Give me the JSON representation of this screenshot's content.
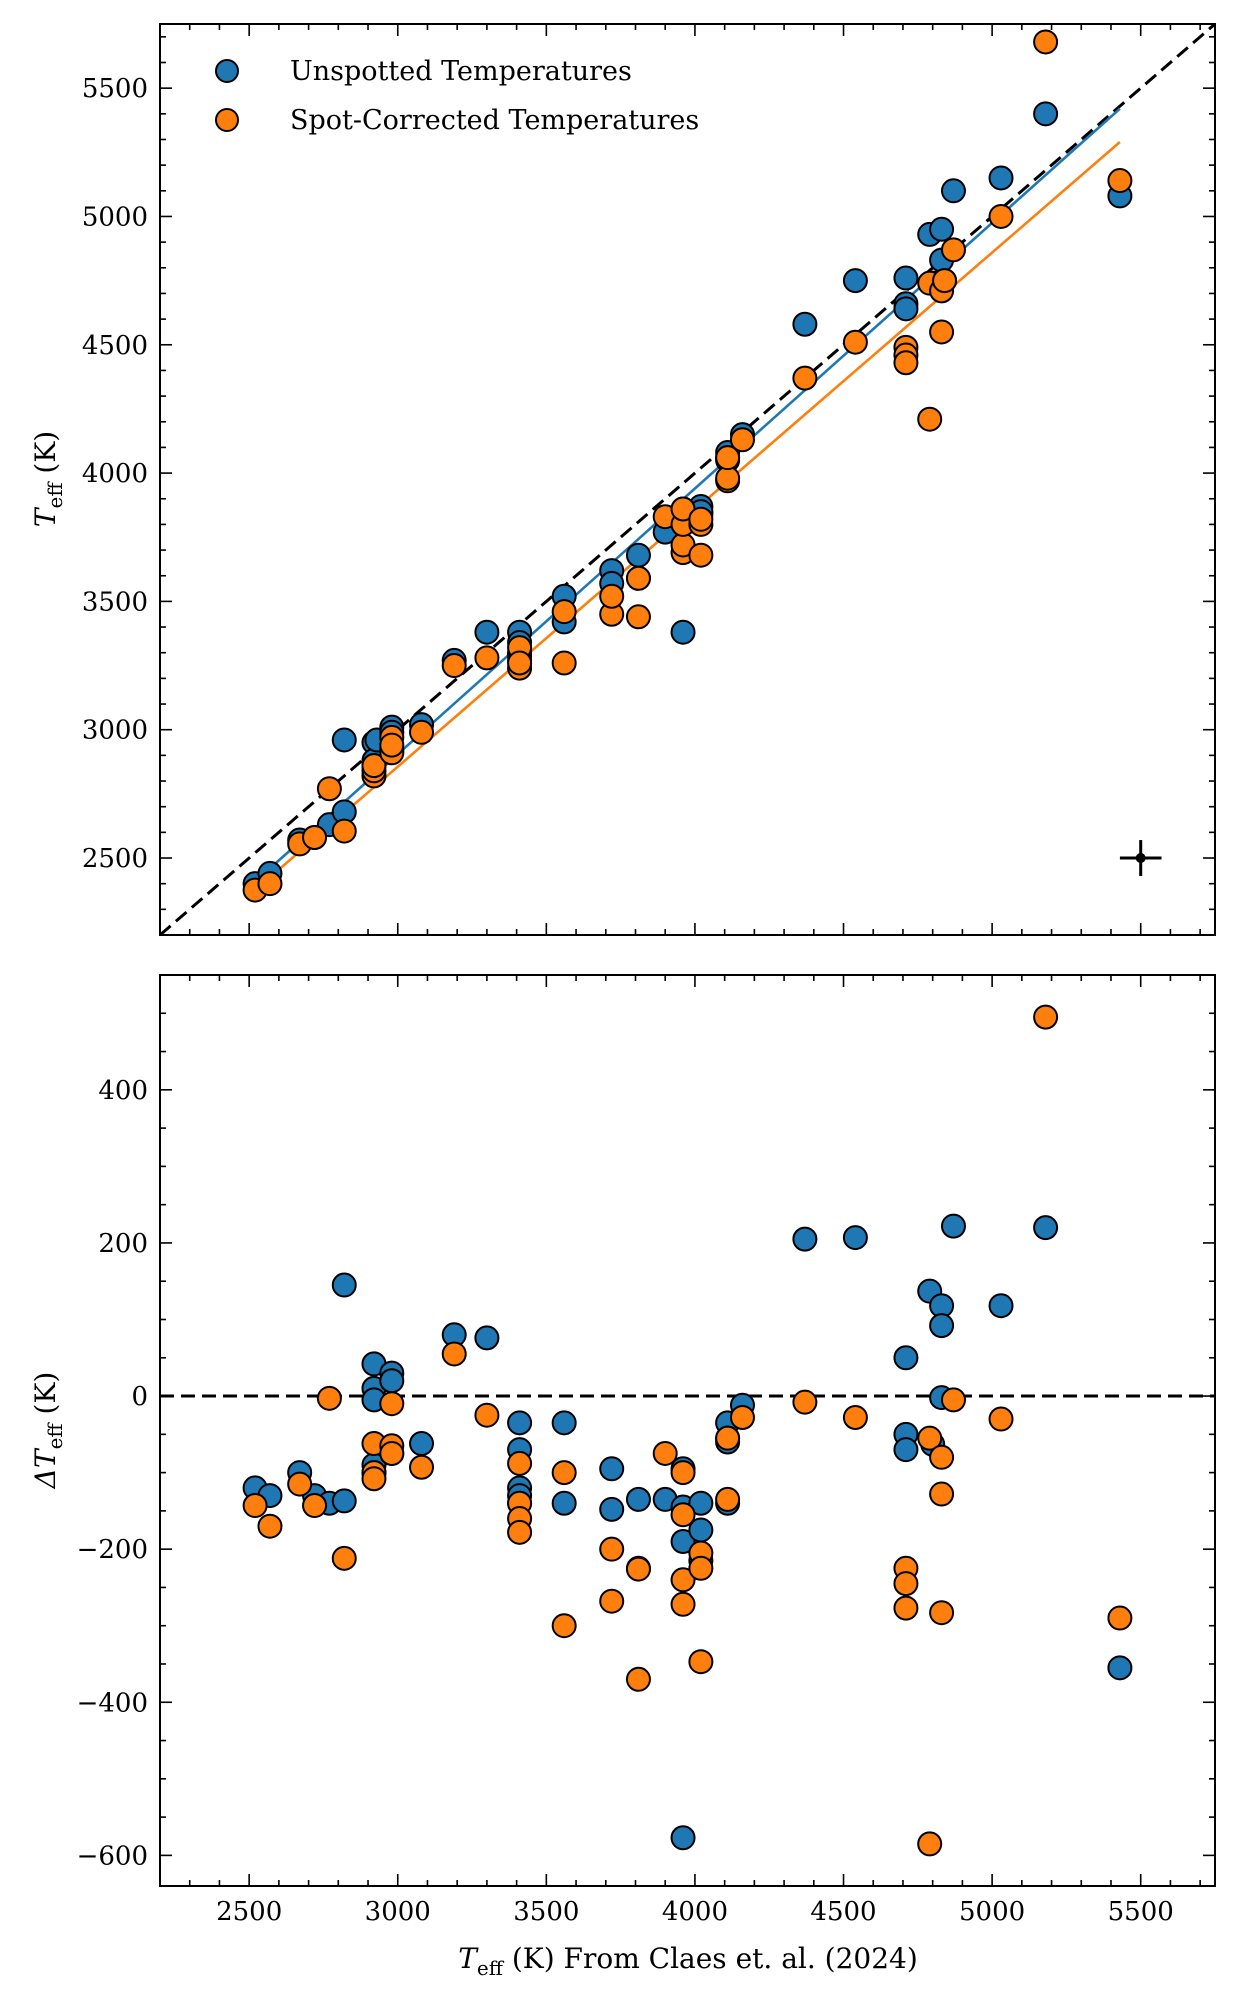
{
  "figure": {
    "xlabel_main": "T",
    "xlabel_sub": "eff",
    "xlabel_rest": " (K) From Claes et. al. (2024)",
    "x_range": [
      2200,
      5750
    ],
    "x_ticks": [
      2500,
      3000,
      3500,
      4000,
      4500,
      5000,
      5500
    ],
    "colors": {
      "unspotted": "#1f77b4",
      "spot_corrected": "#ff7f0e",
      "edge": "#000000",
      "identity": "#000000"
    }
  },
  "chart_data": [
    {
      "type": "scatter",
      "panel": "top",
      "ylabel_main": "T",
      "ylabel_sub": "eff",
      "ylabel_rest": " (K)",
      "ylim": [
        2200,
        5750
      ],
      "y_ticks": [
        2500,
        3000,
        3500,
        4000,
        4500,
        5000,
        5500
      ],
      "legend": {
        "position": "top-left",
        "entries": [
          "Unspotted Temperatures",
          "Spot-Corrected Temperatures"
        ]
      },
      "identity_line": true,
      "fit_lines": [
        {
          "series": "Unspotted Temperatures",
          "x": [
            2520,
            5430
          ],
          "y": [
            2408,
            5420
          ]
        },
        {
          "series": "Spot-Corrected Temperatures",
          "x": [
            2520,
            5430
          ],
          "y": [
            2375,
            5290
          ]
        }
      ],
      "error_bar": {
        "x": 5500,
        "y": 2500,
        "xerr": 70,
        "yerr": 70
      },
      "series": [
        {
          "name": "Unspotted Temperatures",
          "points": [
            [
              2520,
              2400
            ],
            [
              2570,
              2440
            ],
            [
              2670,
              2570
            ],
            [
              2720,
              2580
            ],
            [
              2770,
              2630
            ],
            [
              2820,
              2680
            ],
            [
              2820,
              2960
            ],
            [
              2920,
              2950
            ],
            [
              2920,
              2880
            ],
            [
              2920,
              2860
            ],
            [
              2930,
              2960
            ],
            [
              2980,
              3010
            ],
            [
              2980,
              2990
            ],
            [
              2980,
              2920
            ],
            [
              3080,
              3020
            ],
            [
              3190,
              3270
            ],
            [
              3300,
              3380
            ],
            [
              3410,
              3380
            ],
            [
              3410,
              3340
            ],
            [
              3410,
              3300
            ],
            [
              3410,
              3290
            ],
            [
              3410,
              3270
            ],
            [
              3560,
              3520
            ],
            [
              3560,
              3420
            ],
            [
              3720,
              3620
            ],
            [
              3720,
              3570
            ],
            [
              3810,
              3680
            ],
            [
              3810,
              3590
            ],
            [
              3900,
              3770
            ],
            [
              3960,
              3860
            ],
            [
              3960,
              3380
            ],
            [
              3960,
              3810
            ],
            [
              4020,
              3870
            ],
            [
              4020,
              3840
            ],
            [
              4020,
              3850
            ],
            [
              4110,
              4080
            ],
            [
              4110,
              4060
            ],
            [
              4110,
              4050
            ],
            [
              4160,
              4150
            ],
            [
              4370,
              4580
            ],
            [
              4540,
              4750
            ],
            [
              4710,
              4760
            ],
            [
              4710,
              4660
            ],
            [
              4710,
              4640
            ],
            [
              4790,
              4930
            ],
            [
              4800,
              4740
            ],
            [
              4830,
              4950
            ],
            [
              4830,
              4830
            ],
            [
              4840,
              4750
            ],
            [
              4870,
              5100
            ],
            [
              5030,
              5150
            ],
            [
              5180,
              5400
            ],
            [
              5430,
              5080
            ]
          ]
        },
        {
          "name": "Spot-Corrected Temperatures",
          "points": [
            [
              2520,
              2375
            ],
            [
              2570,
              2400
            ],
            [
              2670,
              2555
            ],
            [
              2720,
              2580
            ],
            [
              2770,
              2770
            ],
            [
              2820,
              2605
            ],
            [
              2920,
              2820
            ],
            [
              2920,
              2840
            ],
            [
              2920,
              2860
            ],
            [
              2980,
              2970
            ],
            [
              2980,
              2910
            ],
            [
              2980,
              2940
            ],
            [
              3080,
              2990
            ],
            [
              3190,
              3250
            ],
            [
              3300,
              3280
            ],
            [
              3410,
              3320
            ],
            [
              3410,
              3240
            ],
            [
              3410,
              3260
            ],
            [
              3560,
              3260
            ],
            [
              3560,
              3460
            ],
            [
              3720,
              3450
            ],
            [
              3720,
              3520
            ],
            [
              3810,
              3440
            ],
            [
              3810,
              3590
            ],
            [
              3900,
              3830
            ],
            [
              3960,
              3690
            ],
            [
              3960,
              3720
            ],
            [
              3960,
              3800
            ],
            [
              3960,
              3860
            ],
            [
              4020,
              3680
            ],
            [
              4020,
              3800
            ],
            [
              4020,
              3820
            ],
            [
              4110,
              3970
            ],
            [
              4110,
              3980
            ],
            [
              4110,
              4060
            ],
            [
              4160,
              4130
            ],
            [
              4370,
              4370
            ],
            [
              4540,
              4510
            ],
            [
              4710,
              4490
            ],
            [
              4710,
              4460
            ],
            [
              4710,
              4430
            ],
            [
              4790,
              4210
            ],
            [
              4790,
              4740
            ],
            [
              4830,
              4550
            ],
            [
              4830,
              4710
            ],
            [
              4840,
              4750
            ],
            [
              4870,
              4870
            ],
            [
              5030,
              5000
            ],
            [
              5180,
              5680
            ],
            [
              5430,
              5140
            ]
          ]
        }
      ]
    },
    {
      "type": "scatter",
      "panel": "bottom",
      "ylabel_main": "ΔT",
      "ylabel_sub": "eff",
      "ylabel_rest": " (K)",
      "ylim": [
        -640,
        550
      ],
      "y_ticks": [
        -600,
        -400,
        -200,
        0,
        200,
        400
      ],
      "y_tick_labels": [
        "−600",
        "−400",
        "−200",
        "0",
        "200",
        "400"
      ],
      "zero_line": true,
      "series": [
        {
          "name": "Unspotted Temperatures",
          "points": [
            [
              2520,
              -120
            ],
            [
              2570,
              -130
            ],
            [
              2670,
              -100
            ],
            [
              2720,
              -130
            ],
            [
              2770,
              -140
            ],
            [
              2820,
              -137
            ],
            [
              2820,
              145
            ],
            [
              2920,
              42
            ],
            [
              2920,
              10
            ],
            [
              2920,
              -5
            ],
            [
              2920,
              -90
            ],
            [
              2920,
              -100
            ],
            [
              2980,
              30
            ],
            [
              2980,
              20
            ],
            [
              2980,
              -75
            ],
            [
              3080,
              -62
            ],
            [
              3190,
              80
            ],
            [
              3300,
              76
            ],
            [
              3410,
              -35
            ],
            [
              3410,
              -70
            ],
            [
              3410,
              -120
            ],
            [
              3410,
              -130
            ],
            [
              3410,
              -140
            ],
            [
              3560,
              -35
            ],
            [
              3560,
              -140
            ],
            [
              3720,
              -95
            ],
            [
              3720,
              -148
            ],
            [
              3810,
              -135
            ],
            [
              3810,
              -225
            ],
            [
              3900,
              -135
            ],
            [
              3960,
              -95
            ],
            [
              3960,
              -145
            ],
            [
              3960,
              -190
            ],
            [
              3960,
              -577
            ],
            [
              4020,
              -140
            ],
            [
              4020,
              -175
            ],
            [
              4020,
              -215
            ],
            [
              4110,
              -35
            ],
            [
              4110,
              -55
            ],
            [
              4110,
              -60
            ],
            [
              4110,
              -140
            ],
            [
              4160,
              -12
            ],
            [
              4370,
              205
            ],
            [
              4540,
              207
            ],
            [
              4710,
              50
            ],
            [
              4710,
              -50
            ],
            [
              4710,
              -70
            ],
            [
              4790,
              137
            ],
            [
              4800,
              -63
            ],
            [
              4830,
              118
            ],
            [
              4830,
              92
            ],
            [
              4830,
              -2
            ],
            [
              4870,
              222
            ],
            [
              5030,
              118
            ],
            [
              5180,
              220
            ],
            [
              5430,
              -355
            ]
          ]
        },
        {
          "name": "Spot-Corrected Temperatures",
          "points": [
            [
              2520,
              -143
            ],
            [
              2570,
              -170
            ],
            [
              2670,
              -115
            ],
            [
              2720,
              -143
            ],
            [
              2770,
              -3
            ],
            [
              2820,
              -212
            ],
            [
              2920,
              -62
            ],
            [
              2920,
              -100
            ],
            [
              2920,
              -108
            ],
            [
              2980,
              -65
            ],
            [
              2980,
              -75
            ],
            [
              2980,
              -10
            ],
            [
              3080,
              -93
            ],
            [
              3190,
              55
            ],
            [
              3300,
              -25
            ],
            [
              3410,
              -88
            ],
            [
              3410,
              -140
            ],
            [
              3410,
              -160
            ],
            [
              3410,
              -178
            ],
            [
              3560,
              -100
            ],
            [
              3560,
              -300
            ],
            [
              3720,
              -200
            ],
            [
              3720,
              -268
            ],
            [
              3810,
              -226
            ],
            [
              3810,
              -370
            ],
            [
              3900,
              -75
            ],
            [
              3960,
              -100
            ],
            [
              3960,
              -155
            ],
            [
              3960,
              -240
            ],
            [
              3960,
              -272
            ],
            [
              4020,
              -205
            ],
            [
              4020,
              -225
            ],
            [
              4020,
              -347
            ],
            [
              4110,
              -55
            ],
            [
              4110,
              -135
            ],
            [
              4160,
              -28
            ],
            [
              4370,
              -8
            ],
            [
              4540,
              -28
            ],
            [
              4710,
              -225
            ],
            [
              4710,
              -245
            ],
            [
              4710,
              -277
            ],
            [
              4790,
              -55
            ],
            [
              4790,
              -585
            ],
            [
              4830,
              -80
            ],
            [
              4830,
              -128
            ],
            [
              4830,
              -283
            ],
            [
              4870,
              -5
            ],
            [
              5030,
              -30
            ],
            [
              5180,
              495
            ],
            [
              5430,
              -290
            ]
          ]
        }
      ]
    }
  ]
}
